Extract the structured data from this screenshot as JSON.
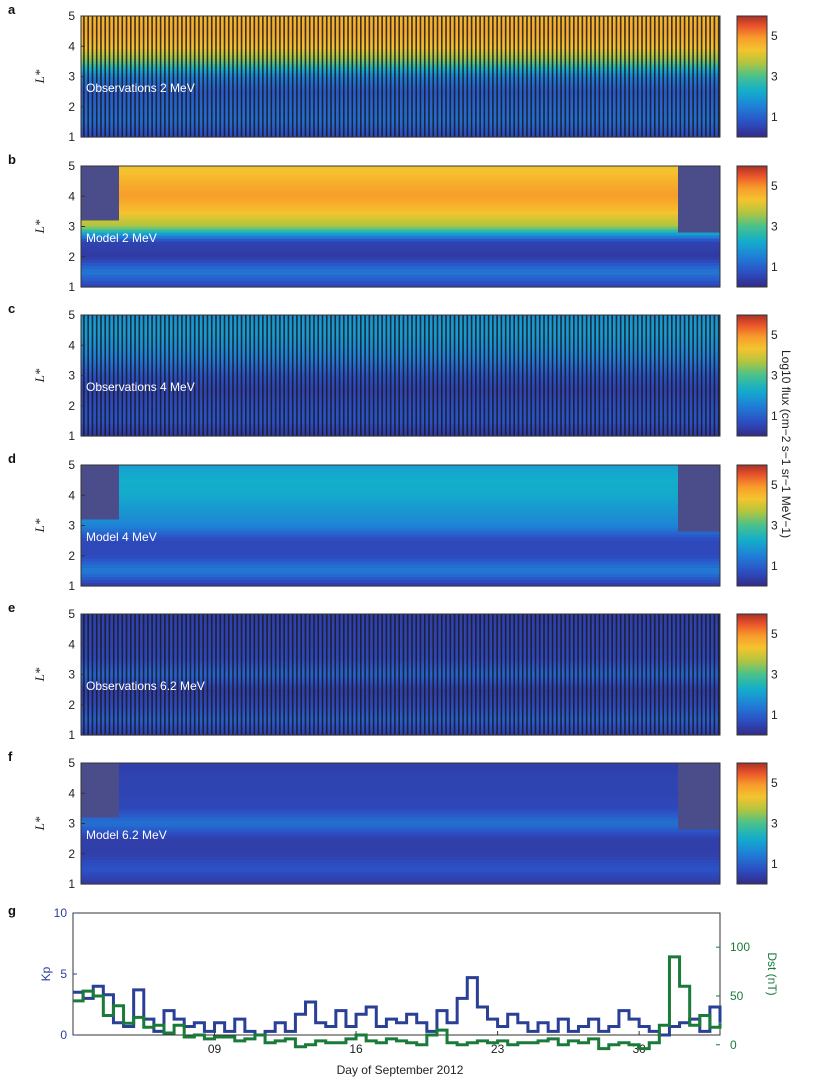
{
  "figure": {
    "colorbar_label": "Log10 flux (cm−2 s−1 sr−1 MeV−1)",
    "colorbar_ticks": [
      "1",
      "3",
      "5"
    ],
    "xlabel": "Day of September 2012",
    "x_ticks": [
      "09",
      "16",
      "23",
      "30"
    ]
  },
  "chart_data": [
    {
      "panel": "a",
      "type": "heatmap",
      "label": "Observations 2 MeV",
      "ylabel": "L*",
      "yticks": [
        "1",
        "2",
        "3",
        "4",
        "5"
      ],
      "ylim": [
        1,
        5
      ],
      "clim": [
        0,
        6
      ],
      "profile": {
        "L": [
          1,
          1.5,
          2,
          2.5,
          3,
          3.5,
          4,
          4.5,
          5
        ],
        "log_flux": [
          0.6,
          1.2,
          1.1,
          0.9,
          1.5,
          3.3,
          4.4,
          4.7,
          4.5
        ]
      },
      "mode": "observation"
    },
    {
      "panel": "b",
      "type": "heatmap",
      "label": "Model 2 MeV",
      "ylabel": "L*",
      "yticks": [
        "1",
        "2",
        "3",
        "4",
        "5"
      ],
      "ylim": [
        1,
        5
      ],
      "clim": [
        0,
        6
      ],
      "profile": {
        "L": [
          1,
          1.5,
          2,
          2.5,
          3,
          3.5,
          4,
          4.5,
          5
        ],
        "log_flux": [
          0.5,
          1.4,
          0.3,
          0.5,
          3.6,
          4.4,
          4.9,
          4.6,
          4.2
        ]
      },
      "mode": "model"
    },
    {
      "panel": "c",
      "type": "heatmap",
      "label": "Observations 4 MeV",
      "ylabel": "L*",
      "yticks": [
        "1",
        "2",
        "3",
        "4",
        "5"
      ],
      "ylim": [
        1,
        5
      ],
      "clim": [
        0,
        6
      ],
      "profile": {
        "L": [
          1,
          1.5,
          2,
          2.5,
          3,
          3.5,
          4,
          4.5,
          5
        ],
        "log_flux": [
          0.3,
          0.8,
          0.7,
          0.5,
          0.8,
          1.4,
          1.8,
          2.0,
          1.8
        ]
      },
      "mode": "observation"
    },
    {
      "panel": "d",
      "type": "heatmap",
      "label": "Model 4 MeV",
      "ylabel": "L*",
      "yticks": [
        "1",
        "2",
        "3",
        "4",
        "5"
      ],
      "ylim": [
        1,
        5
      ],
      "clim": [
        0,
        6
      ],
      "profile": {
        "L": [
          1,
          1.5,
          2,
          2.5,
          3,
          3.5,
          4,
          4.5,
          5
        ],
        "log_flux": [
          0.3,
          1.5,
          0.6,
          0.6,
          1.6,
          1.9,
          2.2,
          2.3,
          2.0
        ]
      },
      "mode": "model"
    },
    {
      "panel": "e",
      "type": "heatmap",
      "label": "Observations 6.2 MeV",
      "ylabel": "L*",
      "yticks": [
        "1",
        "2",
        "3",
        "4",
        "5"
      ],
      "ylim": [
        1,
        5
      ],
      "clim": [
        0,
        6
      ],
      "profile": {
        "L": [
          1,
          1.5,
          2,
          2.5,
          3,
          3.5,
          4,
          4.5,
          5
        ],
        "log_flux": [
          0.4,
          1.0,
          0.6,
          0.4,
          1.1,
          0.6,
          0.5,
          0.5,
          0.4
        ]
      },
      "mode": "observation"
    },
    {
      "panel": "f",
      "type": "heatmap",
      "label": "Model 6.2 MeV",
      "ylabel": "L*",
      "yticks": [
        "1",
        "2",
        "3",
        "4",
        "5"
      ],
      "ylim": [
        1,
        5
      ],
      "clim": [
        0,
        6
      ],
      "profile": {
        "L": [
          1,
          1.5,
          2,
          2.5,
          3,
          3.5,
          4,
          4.5,
          5
        ],
        "log_flux": [
          0.3,
          0.8,
          0.4,
          0.4,
          1.3,
          0.6,
          0.5,
          0.5,
          0.4
        ]
      },
      "mode": "model"
    },
    {
      "panel": "g",
      "type": "line",
      "xlim": [
        2,
        34
      ],
      "x_tick_values": [
        9,
        16,
        23,
        30
      ],
      "series": [
        {
          "name": "Kp",
          "axis": "left",
          "color": "#2a3f96",
          "ylim": [
            0,
            10
          ],
          "yticks": [
            "0",
            "5",
            "10"
          ],
          "x": [
            2,
            2.5,
            3,
            3.5,
            4,
            4.5,
            5,
            5.5,
            6,
            6.5,
            7,
            7.5,
            8,
            8.5,
            9,
            9.5,
            10,
            10.5,
            11,
            11.5,
            12,
            12.5,
            13,
            13.5,
            14,
            14.5,
            15,
            15.5,
            16,
            16.5,
            17,
            17.5,
            18,
            18.5,
            19,
            19.5,
            20,
            20.5,
            21,
            21.5,
            22,
            22.5,
            23,
            23.5,
            24,
            24.5,
            25,
            25.5,
            26,
            26.5,
            27,
            27.5,
            28,
            28.5,
            29,
            29.5,
            30,
            30.5,
            31,
            31.5,
            32,
            32.5,
            33,
            33.5,
            34
          ],
          "y": [
            3.5,
            3.0,
            4.0,
            3.3,
            1.0,
            0.7,
            3.7,
            1.3,
            0.3,
            2.0,
            1.3,
            0.7,
            1.0,
            0.3,
            1.0,
            0.3,
            1.3,
            0.3,
            0.0,
            0.3,
            1.0,
            0.3,
            1.7,
            2.7,
            1.0,
            0.7,
            2.0,
            0.7,
            1.7,
            2.3,
            0.7,
            1.3,
            1.0,
            1.7,
            1.0,
            0.3,
            2.0,
            1.0,
            3.0,
            4.7,
            2.3,
            1.3,
            0.7,
            1.7,
            1.0,
            0.3,
            1.0,
            0.3,
            1.3,
            0.3,
            0.7,
            1.3,
            0.3,
            0.7,
            2.0,
            1.3,
            0.7,
            0.3,
            0.0,
            0.7,
            1.0,
            1.3,
            0.3,
            2.3,
            1.0
          ]
        },
        {
          "name": "Dst (nT)",
          "axis": "right",
          "color": "#1a7a3a",
          "ylim": [
            -10,
            -135
          ],
          "yticks": [
            "0",
            "50",
            "100"
          ],
          "ytick_values": [
            0,
            -50,
            -100
          ],
          "x": [
            2,
            2.5,
            3,
            3.5,
            4,
            4.5,
            5,
            5.5,
            6,
            6.5,
            7,
            7.5,
            8,
            8.5,
            9,
            9.5,
            10,
            10.5,
            11,
            11.5,
            12,
            12.5,
            13,
            13.5,
            14,
            14.5,
            15,
            15.5,
            16,
            16.5,
            17,
            17.5,
            18,
            18.5,
            19,
            19.5,
            20,
            20.5,
            21,
            21.5,
            22,
            22.5,
            23,
            23.5,
            24,
            24.5,
            25,
            25.5,
            26,
            26.5,
            27,
            27.5,
            28,
            28.5,
            29,
            29.5,
            30,
            30.5,
            31,
            31.5,
            32,
            32.5,
            33,
            33.5,
            34
          ],
          "y": [
            -45,
            -55,
            -50,
            -30,
            -40,
            -22,
            -28,
            -18,
            -20,
            -12,
            -20,
            -8,
            -10,
            -6,
            -8,
            -8,
            -4,
            -6,
            -10,
            -2,
            -4,
            -6,
            2,
            0,
            -4,
            -2,
            -2,
            -6,
            -10,
            -4,
            -2,
            -6,
            -4,
            -2,
            0,
            -10,
            -15,
            -2,
            0,
            -2,
            -4,
            -2,
            -4,
            0,
            -2,
            -2,
            -4,
            -6,
            0,
            -4,
            -2,
            -6,
            4,
            0,
            -2,
            0,
            4,
            -2,
            -20,
            -90,
            -60,
            -20,
            -30,
            -18,
            -22
          ]
        }
      ]
    }
  ]
}
